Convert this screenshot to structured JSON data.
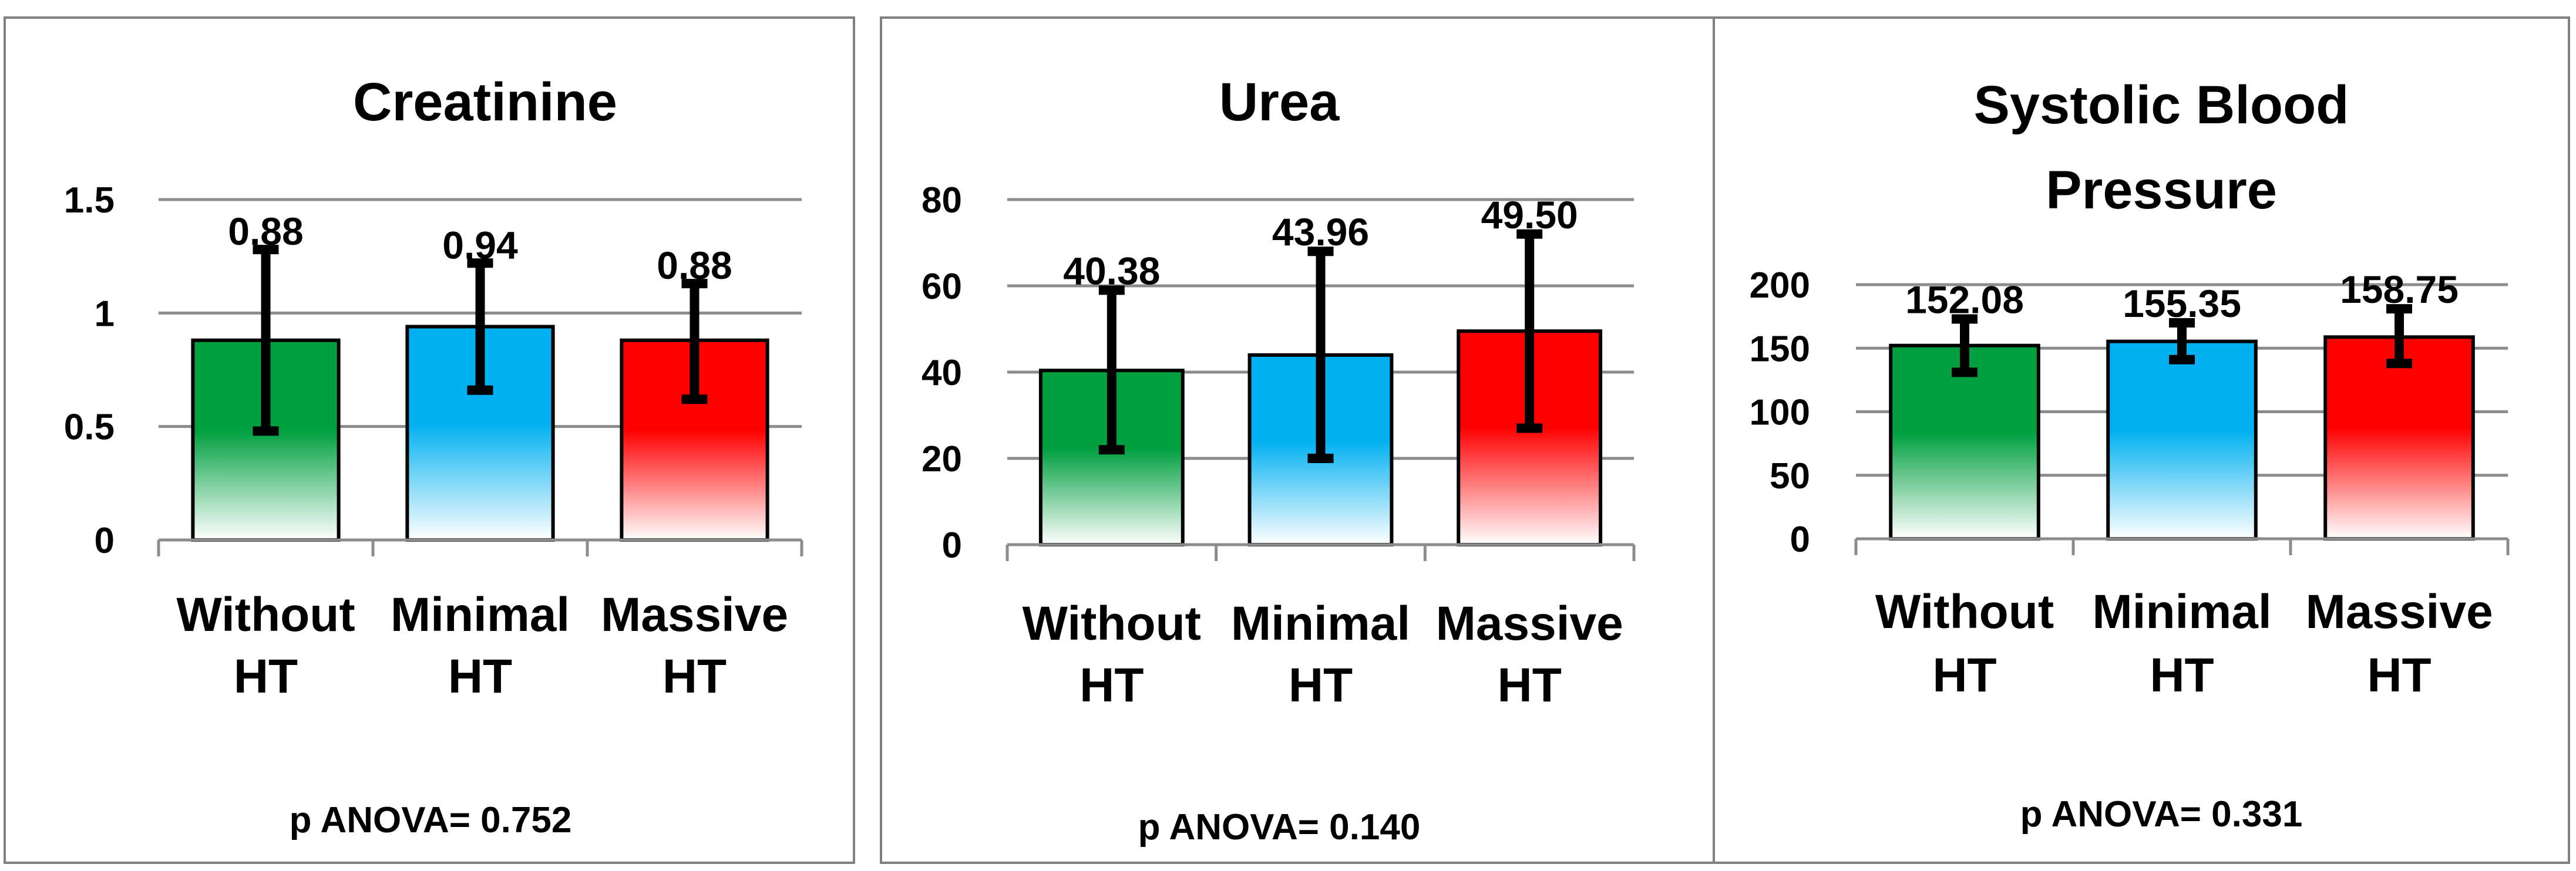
{
  "colors": {
    "without_ht": "#00a040",
    "minimal_ht": "#00b0f0",
    "massive_ht": "#ff0000"
  },
  "chart_data": [
    {
      "type": "bar",
      "title": [
        "Creatinine"
      ],
      "categories": [
        [
          "Without",
          "HT"
        ],
        [
          "Minimal",
          "HT"
        ],
        [
          "Massive",
          "HT"
        ]
      ],
      "values": [
        0.88,
        0.94,
        0.88
      ],
      "value_labels": [
        "0.88",
        "0.94",
        "0.88"
      ],
      "error_low": [
        0.48,
        0.66,
        0.62
      ],
      "error_high": [
        1.28,
        1.22,
        1.13
      ],
      "ylim": [
        0,
        1.5
      ],
      "yticks": [
        0,
        0.5,
        1,
        1.5
      ],
      "ytick_labels": [
        "0",
        "0.5",
        "1",
        "1.5"
      ],
      "grid": true,
      "footnote": "p ANOVA= 0.752"
    },
    {
      "type": "bar",
      "title": [
        "Urea"
      ],
      "categories": [
        [
          "Without",
          "HT"
        ],
        [
          "Minimal",
          "HT"
        ],
        [
          "Massive",
          "HT"
        ]
      ],
      "values": [
        40.38,
        43.96,
        49.5
      ],
      "value_labels": [
        "40.38",
        "43.96",
        "49.50"
      ],
      "error_low": [
        22,
        20,
        27
      ],
      "error_high": [
        59,
        68,
        72
      ],
      "ylim": [
        0,
        80
      ],
      "yticks": [
        0,
        20,
        40,
        60,
        80
      ],
      "ytick_labels": [
        "0",
        "20",
        "40",
        "60",
        "80"
      ],
      "grid": true,
      "footnote": "p ANOVA= 0.140"
    },
    {
      "type": "bar",
      "title": [
        "Systolic Blood",
        "Pressure"
      ],
      "categories": [
        [
          "Without",
          "HT"
        ],
        [
          "Minimal",
          "HT"
        ],
        [
          "Massive",
          "HT"
        ]
      ],
      "values": [
        152.08,
        155.35,
        158.75
      ],
      "value_labels": [
        "152.08",
        "155.35",
        "158.75"
      ],
      "error_low": [
        131,
        141,
        138
      ],
      "error_high": [
        173,
        170,
        181
      ],
      "ylim": [
        0,
        200
      ],
      "yticks": [
        0,
        50,
        100,
        150,
        200
      ],
      "ytick_labels": [
        "0",
        "50",
        "100",
        "150",
        "200"
      ],
      "grid": true,
      "footnote": "p ANOVA= 0.331"
    }
  ]
}
